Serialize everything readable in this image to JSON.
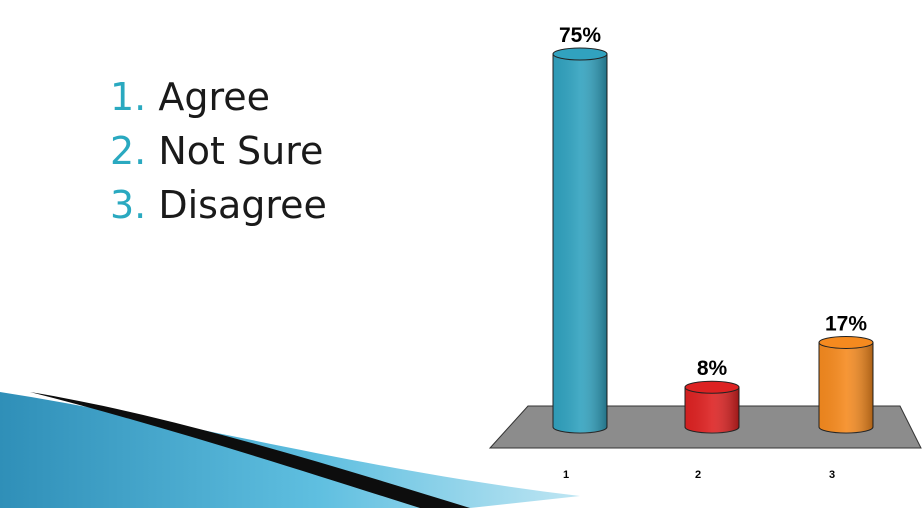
{
  "options": [
    {
      "num": "1.",
      "label": "Agree"
    },
    {
      "num": "2.",
      "label": "Not Sure"
    },
    {
      "num": "3.",
      "label": "Disagree"
    }
  ],
  "colors": {
    "option_number": "#2aa9c0",
    "floor": "#8c8c8c",
    "swoosh": "#3aa0c8"
  },
  "chart_data": {
    "type": "bar",
    "categories": [
      "1",
      "2",
      "3"
    ],
    "values": [
      75,
      8,
      17
    ],
    "value_labels": [
      "75%",
      "8%",
      "17%"
    ],
    "bar_colors": [
      "#31a2bf",
      "#dd2222",
      "#f58a1f"
    ],
    "ylim": [
      0,
      75
    ],
    "title": "",
    "xlabel": "",
    "ylabel": "",
    "grid": false,
    "style": "3d-cylinder"
  }
}
